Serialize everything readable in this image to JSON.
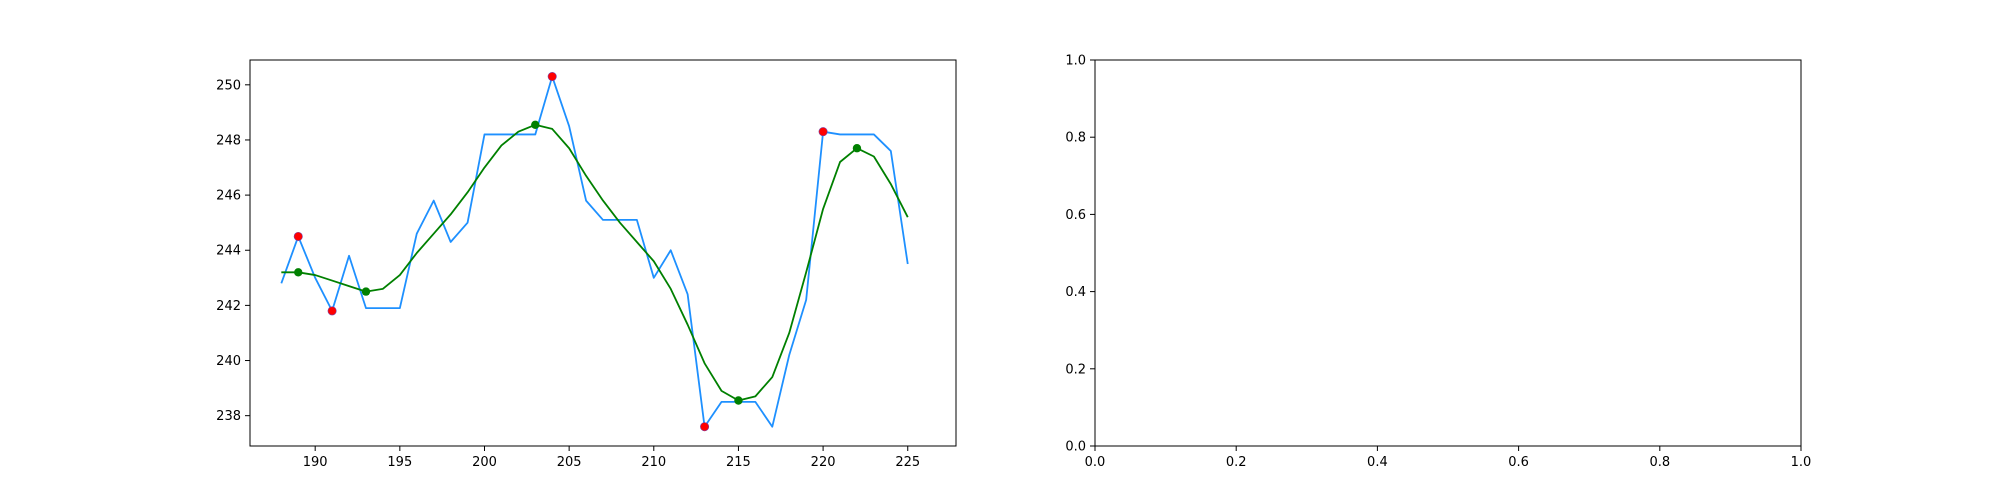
{
  "chart_data": [
    {
      "type": "line",
      "title": "",
      "xlabel": "",
      "ylabel": "",
      "xlim": [
        186.15,
        227.85
      ],
      "ylim": [
        236.9,
        250.9
      ],
      "xticks": [
        190,
        195,
        200,
        205,
        210,
        215,
        220,
        225
      ],
      "yticks": [
        238,
        240,
        242,
        244,
        246,
        248,
        250
      ],
      "grid": false,
      "series": [
        {
          "kind": "line",
          "color": "#1e90ff",
          "x": [
            188,
            189,
            190,
            191,
            192,
            193,
            194,
            195,
            196,
            197,
            198,
            199,
            200,
            201,
            202,
            203,
            204,
            205,
            206,
            207,
            208,
            209,
            210,
            211,
            212,
            213,
            214,
            215,
            216,
            217,
            218,
            219,
            220,
            221,
            222,
            223,
            224,
            225
          ],
          "y": [
            242.8,
            244.5,
            243.0,
            241.8,
            243.8,
            241.9,
            241.9,
            241.9,
            244.6,
            245.8,
            244.3,
            245.0,
            248.2,
            248.2,
            248.2,
            248.2,
            250.3,
            248.5,
            245.8,
            245.1,
            245.1,
            245.1,
            243.0,
            244.0,
            242.4,
            237.6,
            238.5,
            238.5,
            238.5,
            237.6,
            240.2,
            242.2,
            248.3,
            248.2,
            248.2,
            248.2,
            247.6,
            243.5
          ]
        },
        {
          "kind": "line",
          "color": "#008000",
          "x": [
            188,
            189,
            190,
            191,
            192,
            193,
            194,
            195,
            196,
            197,
            198,
            199,
            200,
            201,
            202,
            203,
            204,
            205,
            206,
            207,
            208,
            209,
            210,
            211,
            212,
            213,
            214,
            215,
            216,
            217,
            218,
            219,
            220,
            221,
            222,
            223,
            224,
            225
          ],
          "y": [
            243.2,
            243.2,
            243.1,
            242.9,
            242.7,
            242.5,
            242.6,
            243.1,
            243.9,
            244.6,
            245.3,
            246.1,
            247.0,
            247.8,
            248.3,
            248.55,
            248.4,
            247.7,
            246.7,
            245.8,
            245.0,
            244.3,
            243.6,
            242.6,
            241.3,
            239.9,
            238.9,
            238.55,
            238.7,
            239.4,
            241.0,
            243.2,
            245.5,
            247.2,
            247.7,
            247.4,
            246.4,
            245.2
          ]
        },
        {
          "kind": "scatter",
          "color": "#ff0000",
          "x": [
            189,
            191,
            204,
            213,
            220
          ],
          "y": [
            244.5,
            241.8,
            250.3,
            237.6,
            248.3
          ]
        },
        {
          "kind": "scatter",
          "color": "#008000",
          "x": [
            189,
            193,
            203,
            215,
            222
          ],
          "y": [
            243.2,
            242.5,
            248.55,
            238.55,
            247.7
          ]
        }
      ]
    },
    {
      "type": "line",
      "title": "",
      "xlabel": "",
      "ylabel": "",
      "xlim": [
        0.0,
        1.0
      ],
      "ylim": [
        0.0,
        1.0
      ],
      "xticks": [
        0.0,
        0.2,
        0.4,
        0.6,
        0.8,
        1.0
      ],
      "yticks": [
        0.0,
        0.2,
        0.4,
        0.6,
        0.8,
        1.0
      ],
      "tick_labels_x": [
        "0.0",
        "0.2",
        "0.4",
        "0.6",
        "0.8",
        "1.0"
      ],
      "tick_labels_y": [
        "0.0",
        "0.2",
        "0.4",
        "0.6",
        "0.8",
        "1.0"
      ],
      "grid": false,
      "series": []
    }
  ]
}
